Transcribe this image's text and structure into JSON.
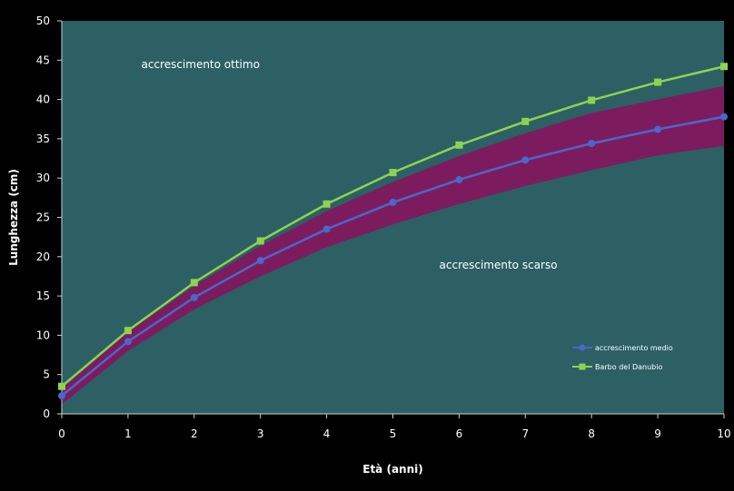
{
  "chart_data": {
    "type": "line",
    "xlabel": "Età (anni)",
    "ylabel": "Lunghezza (cm)",
    "xlim": [
      0,
      10
    ],
    "ylim": [
      0,
      50
    ],
    "x_ticks": [
      0,
      1,
      2,
      3,
      4,
      5,
      6,
      7,
      8,
      9,
      10
    ],
    "y_ticks": [
      0,
      5,
      10,
      15,
      20,
      25,
      30,
      35,
      40,
      45,
      50
    ],
    "x": [
      0,
      1,
      2,
      3,
      4,
      5,
      6,
      7,
      8,
      9,
      10
    ],
    "series": [
      {
        "name": "accrescimento medio",
        "values": [
          2.3,
          9.2,
          14.8,
          19.5,
          23.5,
          26.9,
          29.8,
          32.3,
          34.4,
          36.2,
          37.8
        ],
        "color": "#4a67c9",
        "marker": "circle"
      },
      {
        "name": "Barbo del Danubio",
        "values": [
          3.5,
          10.6,
          16.7,
          22.0,
          26.7,
          30.7,
          34.2,
          37.2,
          39.9,
          42.2,
          44.2
        ],
        "color": "#8ed34f",
        "marker": "square"
      }
    ],
    "band": {
      "upper": [
        3.2,
        10.4,
        16.3,
        21.4,
        25.8,
        29.5,
        32.8,
        35.7,
        38.3,
        40.0,
        41.7
      ],
      "lower": [
        1.2,
        8.0,
        13.3,
        17.5,
        21.2,
        24.1,
        26.7,
        29.0,
        31.0,
        32.9,
        34.1
      ],
      "color": "#7c1c5e"
    },
    "annotations": [
      {
        "text": "accrescimento ottimo",
        "x": 1.2,
        "y": 44
      },
      {
        "text": "accrescimento scarso",
        "x": 5.7,
        "y": 18.5
      }
    ],
    "plot_background": "#2c6064",
    "legend_position": "bottom-right",
    "grid": false
  }
}
